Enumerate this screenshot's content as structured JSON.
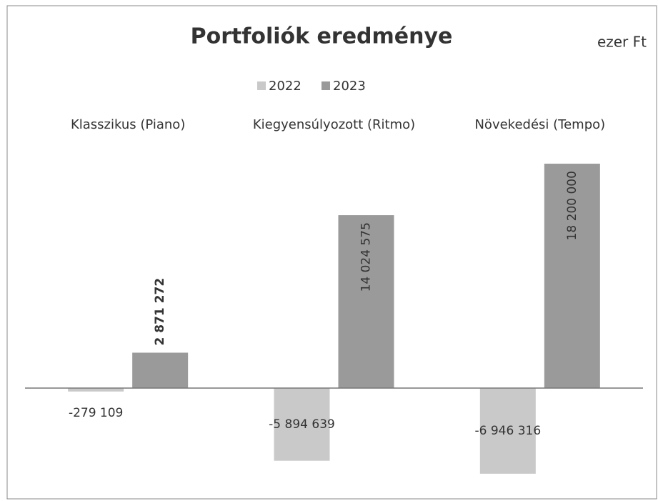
{
  "chart_data": {
    "type": "bar",
    "title": "Portfoliók eredménye",
    "subtitle": "ezer Ft",
    "categories": [
      "Klasszikus (Piano)",
      "Kiegyensúlyozott (Ritmo)",
      "Növekedési (Tempo)"
    ],
    "series": [
      {
        "name": "2022",
        "color": "#c9c9c9",
        "values": [
          -279109,
          -5894639,
          -6946316
        ],
        "value_labels": [
          "-279 109",
          "-5 894 639",
          "-6 946 316"
        ]
      },
      {
        "name": "2023",
        "color": "#9a9a9a",
        "values": [
          2871272,
          14024575,
          18200000
        ],
        "value_labels": [
          "2 871 272",
          "14 024 575",
          "18 200 000"
        ]
      }
    ],
    "ylim": [
      -8000000,
      20000000
    ],
    "legend": "top"
  }
}
